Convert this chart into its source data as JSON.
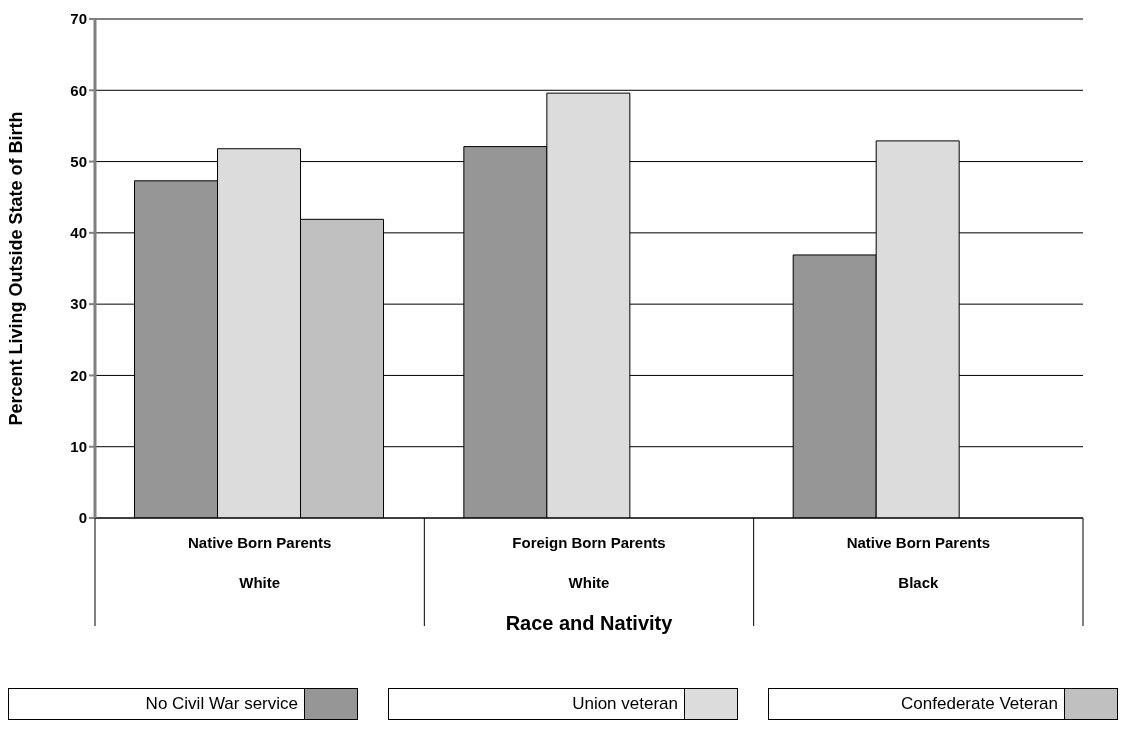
{
  "chart_data": {
    "type": "bar",
    "xlabel": "Race and Nativity",
    "ylabel": "Percent Living Outside State of Birth",
    "categories": [
      "Native Born Parents\nWhite",
      "Foreign Born Parents\nWhite",
      "Native Born Parents\nBlack"
    ],
    "series": [
      {
        "name": "No Civil War service",
        "color": "#969696",
        "values": [
          47.3,
          52.1,
          36.9
        ]
      },
      {
        "name": "Union veteran",
        "color": "#dcdcdc",
        "values": [
          51.8,
          59.6,
          52.9
        ]
      },
      {
        "name": "Confederate Veteran",
        "color": "#c0c0c0",
        "values": [
          41.9,
          null,
          null
        ]
      }
    ],
    "ylim": [
      0,
      70
    ],
    "yticks": [
      0,
      10,
      20,
      30,
      40,
      50,
      60,
      70
    ],
    "grid": "y",
    "legend": "bottom"
  }
}
